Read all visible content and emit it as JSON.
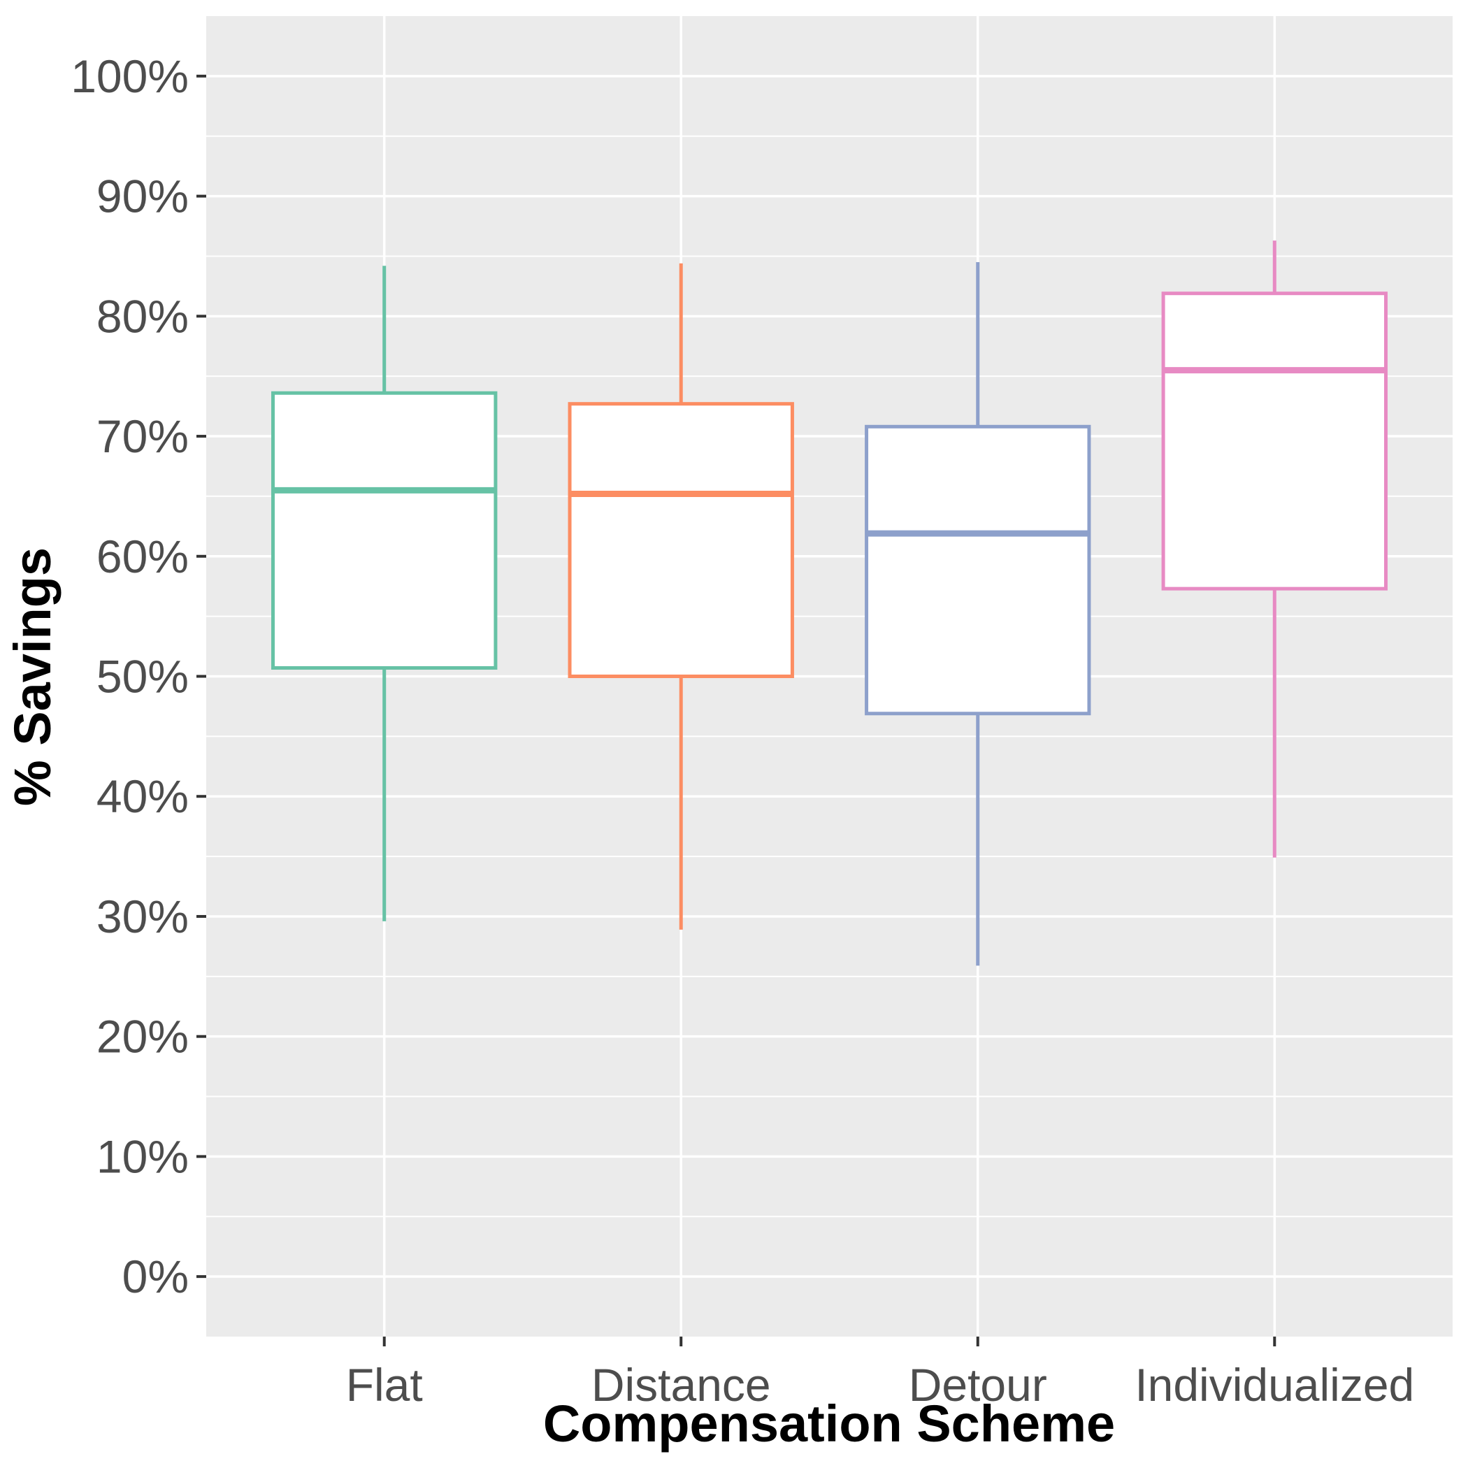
{
  "chart_data": {
    "type": "boxplot",
    "title": "",
    "xlabel": "Compensation Scheme",
    "ylabel": "% Savings",
    "categories": [
      "Flat",
      "Distance",
      "Detour",
      "Individualized"
    ],
    "series": [
      {
        "name": "Flat",
        "color": "#66C2A5",
        "whisker_min": 29.6,
        "q1": 50.7,
        "median": 65.5,
        "q3": 73.6,
        "whisker_max": 84.2
      },
      {
        "name": "Distance",
        "color": "#FC8D62",
        "whisker_min": 28.9,
        "q1": 50.0,
        "median": 65.2,
        "q3": 72.7,
        "whisker_max": 84.4
      },
      {
        "name": "Detour",
        "color": "#8DA0CB",
        "whisker_min": 25.9,
        "q1": 46.9,
        "median": 61.9,
        "q3": 70.8,
        "whisker_max": 84.5
      },
      {
        "name": "Individualized",
        "color": "#E78AC3",
        "whisker_min": 34.9,
        "q1": 57.3,
        "median": 75.5,
        "q3": 81.9,
        "whisker_max": 86.3
      }
    ],
    "y_axis": {
      "tick_values": [
        0,
        10,
        20,
        30,
        40,
        50,
        60,
        70,
        80,
        90,
        100
      ],
      "tick_labels": [
        "0%",
        "10%",
        "20%",
        "30%",
        "40%",
        "50%",
        "60%",
        "70%",
        "80%",
        "90%",
        "100%"
      ],
      "minor_tick_values": [
        5,
        15,
        25,
        35,
        45,
        55,
        65,
        75,
        85,
        95,
        105
      ],
      "range_shown": [
        -5,
        105
      ]
    },
    "legend": "none",
    "grid": "on",
    "style": {
      "panel_bg": "#EBEBEB",
      "gridline_color": "#FFFFFF",
      "axis_text_color": "#4D4D4D",
      "axis_title_color": "#000000",
      "tick_mark_color": "#333333",
      "box_fill": "#FFFFFF"
    }
  }
}
